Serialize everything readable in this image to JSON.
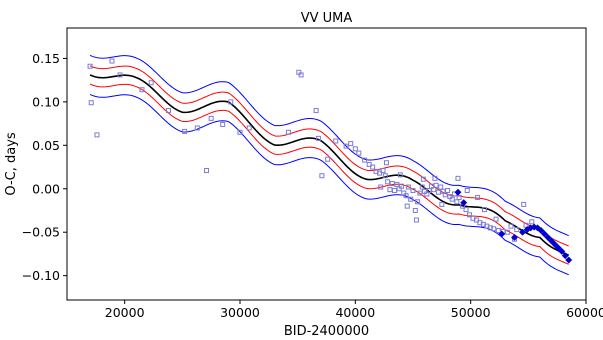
{
  "chart_data": {
    "type": "scatter",
    "title": "VV UMA",
    "xlabel": "BID-2400000",
    "ylabel": "O-C, days",
    "xlim": [
      15000,
      60000
    ],
    "ylim": [
      -0.128,
      0.185
    ],
    "xticks": [
      20000,
      30000,
      40000,
      50000,
      60000
    ],
    "yticks": [
      -0.1,
      -0.05,
      0.0,
      0.05,
      0.1,
      0.15
    ],
    "xtick_labels": [
      "20000",
      "30000",
      "40000",
      "50000",
      "60000"
    ],
    "ytick_labels": [
      "−0.10",
      "−0.05",
      "0.00",
      "0.05",
      "0.10",
      "0.15"
    ],
    "grid": false,
    "colors": {
      "fit": "#000000",
      "inner_band": "#ff0000",
      "outer_band": "#0000ff",
      "visual_points": "#7b7bd6",
      "ccd_points": "#0000cc"
    },
    "fit_model": {
      "x_range": [
        17000,
        58500
      ],
      "trend": [
        [
          17000,
          0.141
        ],
        [
          21000,
          0.118
        ],
        [
          25000,
          0.098
        ],
        [
          29000,
          0.09
        ],
        [
          33000,
          0.06
        ],
        [
          37000,
          0.046
        ],
        [
          41000,
          0.02
        ],
        [
          45000,
          0.001
        ],
        [
          49000,
          -0.01
        ],
        [
          53000,
          -0.045
        ],
        [
          56000,
          -0.046
        ],
        [
          58500,
          -0.08
        ]
      ],
      "period": 7800,
      "amplitude": 0.01,
      "phase_ref_x": 21000,
      "inner_band_offset": 0.0105,
      "outer_band_offset": 0.0225
    },
    "series": [
      {
        "marker": "square-open",
        "points": [
          [
            17000,
            0.141
          ],
          [
            17100,
            0.099
          ],
          [
            17600,
            0.062
          ],
          [
            18900,
            0.147
          ],
          [
            19600,
            0.131
          ],
          [
            21500,
            0.114
          ],
          [
            22300,
            0.122
          ],
          [
            23800,
            0.09
          ],
          [
            25200,
            0.066
          ],
          [
            26300,
            0.07
          ],
          [
            27100,
            0.021
          ],
          [
            27500,
            0.081
          ],
          [
            28500,
            0.074
          ],
          [
            29200,
            0.1
          ],
          [
            30000,
            0.065
          ],
          [
            30800,
            0.07
          ],
          [
            34200,
            0.065
          ],
          [
            35100,
            0.134
          ],
          [
            35300,
            0.131
          ],
          [
            36600,
            0.09
          ],
          [
            36800,
            0.058
          ],
          [
            37100,
            0.015
          ],
          [
            37600,
            0.034
          ],
          [
            38300,
            0.055
          ],
          [
            39200,
            0.049
          ],
          [
            39600,
            0.052
          ],
          [
            40000,
            0.046
          ],
          [
            40300,
            0.041
          ],
          [
            40800,
            0.033
          ],
          [
            41200,
            0.028
          ],
          [
            41500,
            0.025
          ],
          [
            41800,
            0.02
          ],
          [
            42100,
            0.018
          ],
          [
            42200,
            0.002
          ],
          [
            42400,
            0.021
          ],
          [
            42600,
            0.015
          ],
          [
            42800,
            0.008
          ],
          [
            43000,
            -0.001
          ],
          [
            43200,
            0.006
          ],
          [
            43400,
            -0.002
          ],
          [
            43600,
            0.005
          ],
          [
            43800,
            0.0
          ],
          [
            44000,
            0.003
          ],
          [
            44200,
            -0.005
          ],
          [
            44400,
            -0.008
          ],
          [
            44600,
            0.002
          ],
          [
            44800,
            -0.012
          ],
          [
            45000,
            -0.002
          ],
          [
            45200,
            -0.025
          ],
          [
            45300,
            -0.036
          ],
          [
            45400,
            -0.015
          ],
          [
            45600,
            -0.005
          ],
          [
            45800,
            0.002
          ],
          [
            46000,
            -0.003
          ],
          [
            46200,
            -0.006
          ],
          [
            46400,
            -0.002
          ],
          [
            46600,
            0.003
          ],
          [
            46800,
            -0.001
          ],
          [
            47000,
            0.004
          ],
          [
            47200,
            -0.004
          ],
          [
            47400,
            0.002
          ],
          [
            47600,
            -0.003
          ],
          [
            47800,
            -0.007
          ],
          [
            48000,
            -0.002
          ],
          [
            48200,
            -0.009
          ],
          [
            48400,
            -0.012
          ],
          [
            48600,
            -0.006
          ],
          [
            48800,
            -0.015
          ],
          [
            49000,
            -0.01
          ],
          [
            49300,
            -0.02
          ],
          [
            49600,
            -0.024
          ],
          [
            49900,
            -0.03
          ],
          [
            50200,
            -0.034
          ],
          [
            50500,
            -0.036
          ],
          [
            50800,
            -0.039
          ],
          [
            51100,
            -0.041
          ],
          [
            51400,
            -0.043
          ],
          [
            51700,
            -0.045
          ],
          [
            52000,
            -0.046
          ],
          [
            52400,
            -0.048
          ],
          [
            52800,
            -0.049
          ],
          [
            53200,
            -0.05
          ],
          [
            53500,
            -0.043
          ],
          [
            54000,
            -0.047
          ],
          [
            54600,
            -0.018
          ],
          [
            54800,
            -0.042
          ],
          [
            55300,
            -0.038
          ],
          [
            48900,
            0.012
          ],
          [
            49700,
            -0.002
          ],
          [
            50600,
            -0.01
          ],
          [
            51200,
            -0.024
          ],
          [
            52200,
            -0.035
          ],
          [
            53800,
            -0.058
          ],
          [
            42700,
            0.03
          ],
          [
            43900,
            0.016
          ],
          [
            45900,
            0.011
          ],
          [
            46900,
            0.012
          ],
          [
            44500,
            -0.02
          ],
          [
            47500,
            -0.018
          ]
        ]
      },
      {
        "marker": "diamond-filled",
        "points": [
          [
            48900,
            -0.004
          ],
          [
            49400,
            -0.016
          ],
          [
            52700,
            -0.052
          ],
          [
            53800,
            -0.056
          ],
          [
            54500,
            -0.05
          ],
          [
            54900,
            -0.047
          ],
          [
            55200,
            -0.045
          ],
          [
            55500,
            -0.044
          ],
          [
            55800,
            -0.045
          ],
          [
            56100,
            -0.048
          ],
          [
            56400,
            -0.052
          ],
          [
            56700,
            -0.056
          ],
          [
            57000,
            -0.06
          ],
          [
            57300,
            -0.064
          ],
          [
            57600,
            -0.068
          ],
          [
            57900,
            -0.072
          ],
          [
            58200,
            -0.077
          ],
          [
            58500,
            -0.082
          ]
        ]
      }
    ]
  }
}
